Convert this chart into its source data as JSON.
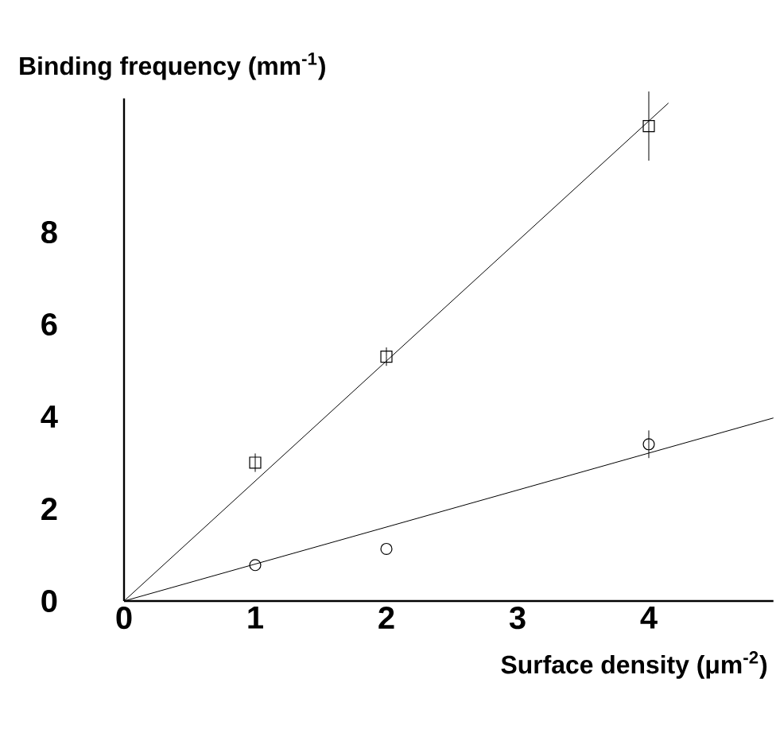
{
  "chart_data": {
    "type": "scatter",
    "xlabel": "Surface density (μm$^{-2}$)",
    "ylabel": "Binding frequency (mm$^{-1}$)",
    "xlim": [
      0,
      4.95
    ],
    "ylim": [
      0,
      10.9
    ],
    "xticks": [
      0,
      1,
      2,
      3,
      4
    ],
    "yticks": [
      0,
      2,
      4,
      6,
      8
    ],
    "grid": false,
    "series": [
      {
        "marker": "square",
        "color": "#000000",
        "x": [
          1,
          2,
          4
        ],
        "values": [
          3.0,
          5.3,
          10.3
        ],
        "errors": [
          0.2,
          0.2,
          0.75
        ]
      },
      {
        "marker": "circle",
        "color": "#000000",
        "x": [
          1,
          2,
          4
        ],
        "values": [
          0.78,
          1.13,
          3.4
        ],
        "errors": [
          null,
          null,
          0.3
        ]
      },
      {
        "type": "line",
        "marker": "none",
        "color": "#000000",
        "x": [
          0,
          4.15
        ],
        "values": [
          0,
          10.8
        ]
      },
      {
        "type": "line",
        "marker": "none",
        "color": "#000000",
        "x": [
          0,
          4.95
        ],
        "values": [
          0,
          3.97
        ]
      }
    ]
  }
}
